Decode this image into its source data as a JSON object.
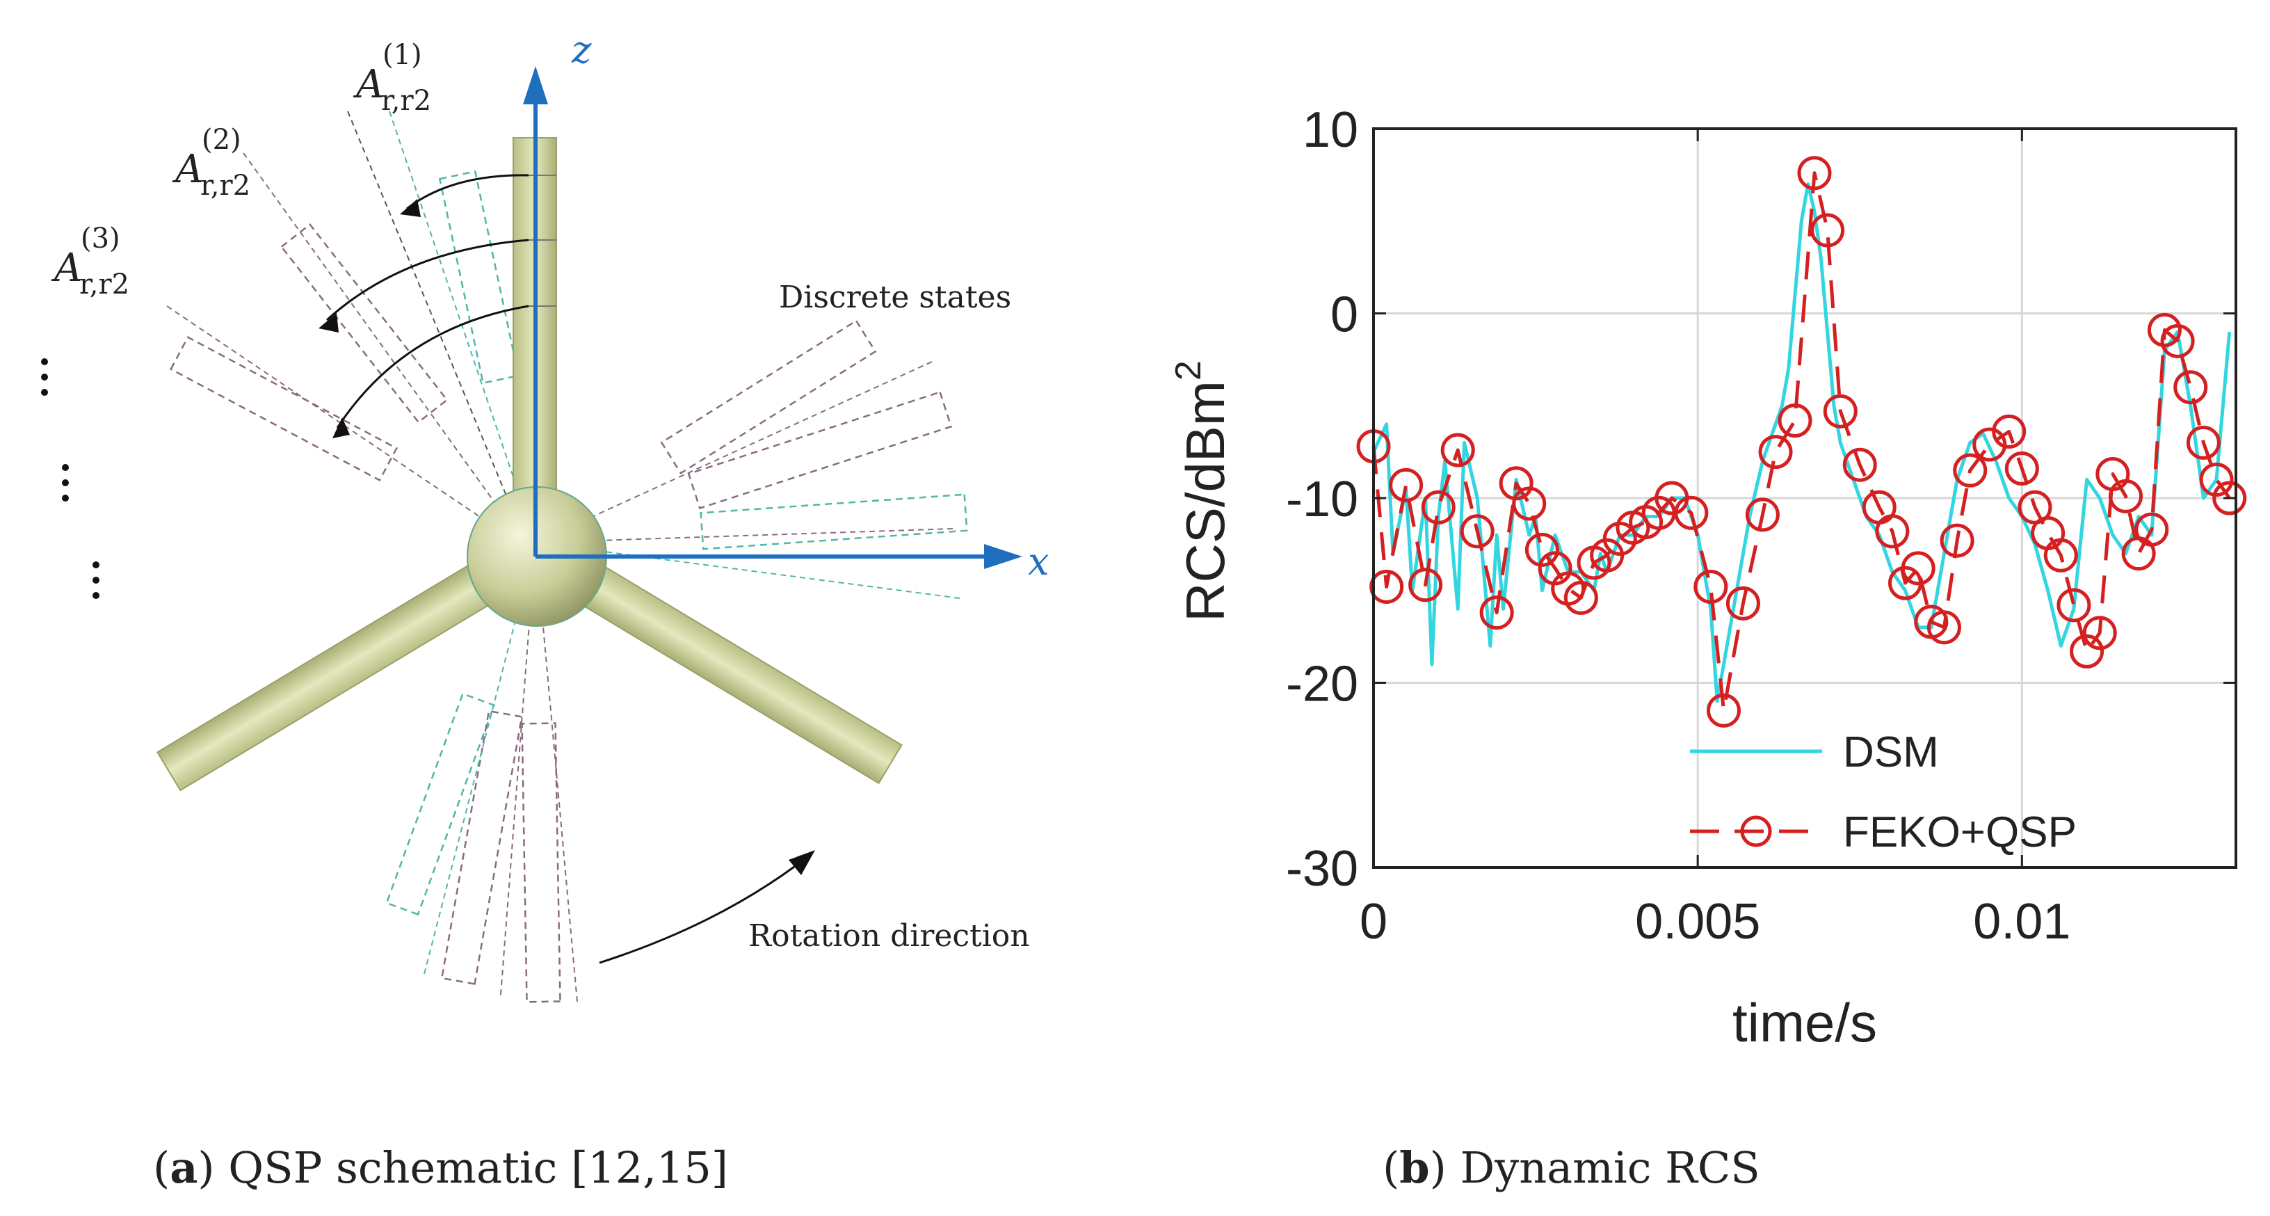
{
  "panel_a": {
    "axis_z": "z",
    "axis_x": "x",
    "state_labels": [
      {
        "letter": "A",
        "sub": "r,r2",
        "sup": "(1)"
      },
      {
        "letter": "A",
        "sub": "r,r2",
        "sup": "(2)"
      },
      {
        "letter": "A",
        "sub": "r,r2",
        "sup": "(3)"
      }
    ],
    "discrete_states_label": "Discrete states",
    "rotation_label": "Rotation direction",
    "caption_letter": "a",
    "caption_text": ") QSP schematic [12,15]"
  },
  "panel_b": {
    "caption_letter": "b",
    "caption_text": ") Dynamic RCS"
  },
  "colors": {
    "axis_blue": "#1f6fbf",
    "blade": "#d4d9a6",
    "dsm": "#33d6e0",
    "feko": "#d42020"
  },
  "chart_data": {
    "type": "line",
    "title": "",
    "xlabel": "time/s",
    "ylabel": "RCS/dBm",
    "ylabel_sup": "2",
    "xlim": [
      0,
      0.0133
    ],
    "ylim": [
      -30,
      10
    ],
    "xticks": [
      0,
      0.005,
      0.01
    ],
    "xtick_labels": [
      "0",
      "0.005",
      "0.01"
    ],
    "yticks": [
      -30,
      -20,
      -10,
      0,
      10
    ],
    "ytick_labels": [
      "-30",
      "-20",
      "-10",
      "0",
      "10"
    ],
    "grid": true,
    "legend_position": "bottom-right",
    "series": [
      {
        "name": "DSM",
        "style": "solid",
        "x": [
          0,
          0.0002,
          0.0003,
          0.0005,
          0.0006,
          0.0008,
          0.0009,
          0.001,
          0.0011,
          0.0013,
          0.0014,
          0.0016,
          0.0018,
          0.0019,
          0.002,
          0.0022,
          0.0024,
          0.0025,
          0.0026,
          0.0028,
          0.003,
          0.0032,
          0.0034,
          0.0035,
          0.0036,
          0.0038,
          0.004,
          0.0042,
          0.0044,
          0.0046,
          0.0048,
          0.005,
          0.0052,
          0.0053,
          0.0054,
          0.0056,
          0.0058,
          0.006,
          0.0062,
          0.0063,
          0.0064,
          0.0065,
          0.0066,
          0.0067,
          0.0068,
          0.0069,
          0.007,
          0.0071,
          0.0072,
          0.0074,
          0.0076,
          0.0078,
          0.008,
          0.0082,
          0.0084,
          0.0086,
          0.0088,
          0.009,
          0.0092,
          0.0094,
          0.0096,
          0.0098,
          0.01,
          0.0102,
          0.0104,
          0.0106,
          0.0108,
          0.011,
          0.0112,
          0.0114,
          0.0116,
          0.0118,
          0.012,
          0.0122,
          0.0124,
          0.0126,
          0.0128,
          0.013,
          0.0132
        ],
        "y": [
          -7.5,
          -6,
          -13,
          -9.5,
          -15,
          -10,
          -19,
          -11,
          -8,
          -16,
          -7,
          -10,
          -18,
          -12,
          -16,
          -9,
          -12,
          -11,
          -15,
          -12,
          -14,
          -14,
          -15,
          -13,
          -14,
          -12,
          -12,
          -11,
          -11,
          -10,
          -10,
          -12,
          -16,
          -21,
          -19,
          -15,
          -11,
          -8,
          -6,
          -5,
          -3,
          1,
          5,
          7,
          5.5,
          3,
          -1,
          -5,
          -7,
          -9,
          -11,
          -12,
          -14,
          -15,
          -17,
          -17,
          -13,
          -9,
          -7,
          -6.5,
          -8,
          -10,
          -11,
          -12.5,
          -15,
          -18,
          -16,
          -9,
          -10,
          -12,
          -13,
          -11,
          -12,
          -2,
          -1,
          -5,
          -10,
          -9,
          -1
        ]
      },
      {
        "name": "FEKO+QSP",
        "style": "dashed-circle",
        "x": [
          0,
          0.0002,
          0.0005,
          0.0008,
          0.001,
          0.0013,
          0.0016,
          0.0019,
          0.0022,
          0.0024,
          0.0026,
          0.0028,
          0.003,
          0.0032,
          0.0034,
          0.0036,
          0.0038,
          0.004,
          0.0042,
          0.0044,
          0.0046,
          0.0049,
          0.0052,
          0.0054,
          0.0057,
          0.006,
          0.0062,
          0.0065,
          0.0068,
          0.007,
          0.0072,
          0.0075,
          0.0078,
          0.008,
          0.0082,
          0.0084,
          0.0086,
          0.0088,
          0.009,
          0.0092,
          0.0095,
          0.0098,
          0.01,
          0.0102,
          0.0104,
          0.0106,
          0.0108,
          0.011,
          0.0112,
          0.0114,
          0.0116,
          0.0118,
          0.012,
          0.0122,
          0.0124,
          0.0126,
          0.0128,
          0.013,
          0.0132
        ],
        "y": [
          -7.2,
          -14.8,
          -9.3,
          -14.7,
          -10.5,
          -7.4,
          -11.8,
          -16.2,
          -9.2,
          -10.3,
          -12.8,
          -13.8,
          -14.9,
          -15.4,
          -13.5,
          -13.1,
          -12.2,
          -11.6,
          -11.3,
          -10.8,
          -10,
          -10.8,
          -14.8,
          -21.5,
          -15.7,
          -10.9,
          -7.5,
          -5.8,
          7.6,
          4.5,
          -5.3,
          -8.2,
          -10.5,
          -11.8,
          -14.6,
          -13.8,
          -16.7,
          -17,
          -12.3,
          -8.5,
          -7.1,
          -6.4,
          -8.4,
          -10.5,
          -11.9,
          -13.1,
          -15.8,
          -18.3,
          -17.3,
          -8.7,
          -9.9,
          -13,
          -11.7,
          -0.9,
          -1.5,
          -4,
          -7,
          -9,
          -10
        ]
      }
    ]
  }
}
